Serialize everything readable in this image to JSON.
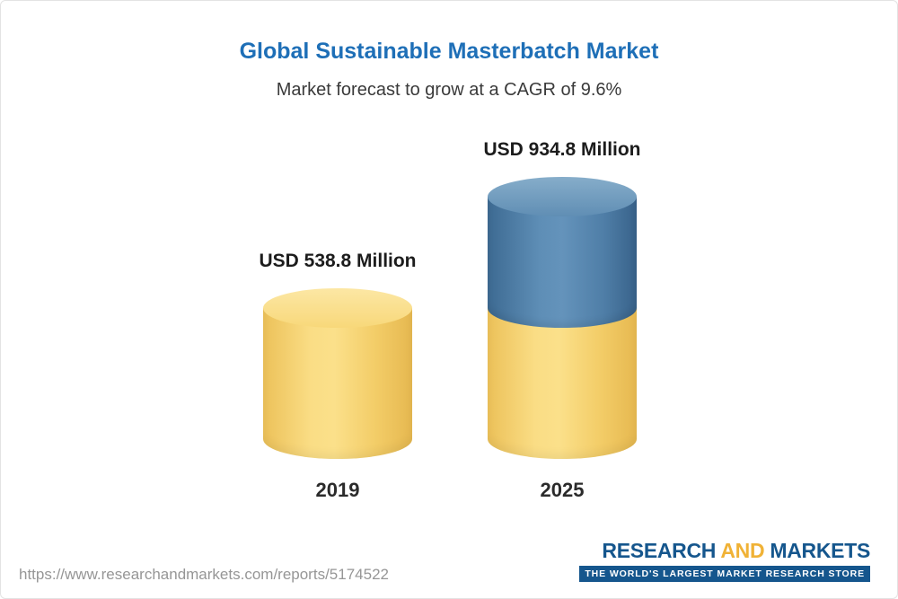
{
  "chart_data": {
    "type": "bar",
    "subtype": "3d-cylinder",
    "title": "Global Sustainable Masterbatch Market",
    "subtitle": "Market forecast to grow at a CAGR of 9.6%",
    "categories": [
      "2019",
      "2025"
    ],
    "values": [
      538.8,
      934.8
    ],
    "value_labels": [
      "USD 538.8 Million",
      "USD 934.8 Million"
    ],
    "unit": "USD Million",
    "cagr": "9.6%",
    "ylim": [
      0,
      934.8
    ],
    "grid": false,
    "legend": "none",
    "colors": {
      "base_segment": "#F6D36E",
      "growth_segment": "#4C7EA6",
      "title": "#1E6FB7"
    }
  },
  "footer": {
    "source_url": "https://www.researchandmarkets.com/reports/5174522",
    "logo": {
      "word_research": "RESEARCH",
      "word_and": "AND",
      "word_markets": "MARKETS",
      "tagline": "THE WORLD'S LARGEST MARKET RESEARCH STORE"
    }
  }
}
